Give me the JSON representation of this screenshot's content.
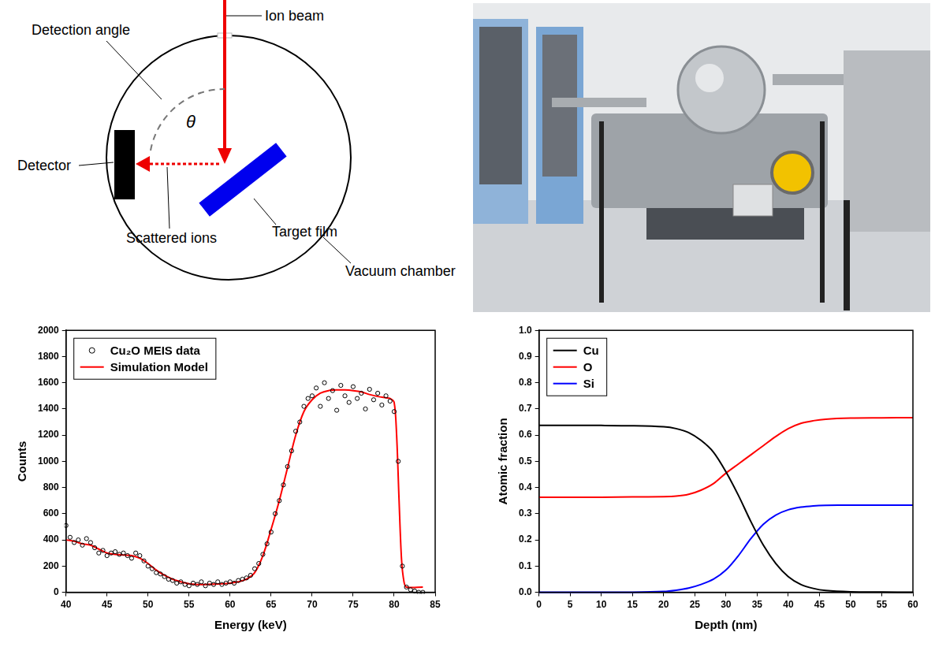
{
  "diagram": {
    "labels": {
      "ion_beam": "Ion beam",
      "detection_angle": "Detection angle",
      "angle_symbol": "θ",
      "detector": "Detector",
      "scattered_ions": "Scattered ions",
      "target_film": "Target film",
      "vacuum_chamber": "Vacuum chamber"
    }
  },
  "chart_data": [
    {
      "type": "scatter",
      "x_label": "Energy (keV)",
      "y_label": "Counts",
      "xlim": [
        40,
        85
      ],
      "xticks": [
        40,
        45,
        50,
        55,
        60,
        65,
        70,
        75,
        80,
        85
      ],
      "ylim": [
        0,
        2000
      ],
      "yticks": [
        0,
        200,
        400,
        600,
        800,
        1000,
        1200,
        1400,
        1600,
        1800,
        2000
      ],
      "grid": false,
      "legend": "top left",
      "series": [
        {
          "name": "Cu₂O MEIS data",
          "type": "scatter",
          "marker": "open_circle",
          "color": "#000000",
          "x": [
            40,
            40.5,
            41,
            41.5,
            42,
            42.5,
            43,
            43.5,
            44,
            44.5,
            45,
            45.5,
            46,
            46.5,
            47,
            47.5,
            48,
            48.5,
            49,
            49.5,
            50,
            50.5,
            51,
            51.5,
            52,
            52.5,
            53,
            53.5,
            54,
            54.5,
            55,
            55.5,
            56,
            56.5,
            57,
            57.5,
            58,
            58.5,
            59,
            59.5,
            60,
            60.5,
            61,
            61.5,
            62,
            62.5,
            63,
            63.5,
            64,
            64.5,
            65,
            65.5,
            66,
            66.5,
            67,
            67.5,
            68,
            68.5,
            69,
            69.5,
            70,
            70.5,
            71,
            71.5,
            72,
            72.5,
            73,
            73.5,
            74,
            74.5,
            75,
            75.5,
            76,
            76.5,
            77,
            77.5,
            78,
            78.5,
            79,
            79.5,
            80,
            80.5,
            81,
            81.5,
            82,
            82.5,
            83,
            83.5
          ],
          "values": [
            510,
            420,
            380,
            400,
            360,
            410,
            380,
            340,
            300,
            320,
            280,
            300,
            310,
            290,
            300,
            280,
            260,
            300,
            280,
            240,
            200,
            180,
            150,
            140,
            120,
            100,
            90,
            70,
            80,
            60,
            50,
            70,
            60,
            80,
            50,
            70,
            60,
            80,
            60,
            70,
            80,
            70,
            90,
            100,
            110,
            130,
            180,
            220,
            290,
            370,
            460,
            600,
            700,
            820,
            960,
            1080,
            1230,
            1300,
            1420,
            1480,
            1500,
            1560,
            1420,
            1600,
            1480,
            1540,
            1390,
            1580,
            1500,
            1450,
            1570,
            1480,
            1520,
            1400,
            1550,
            1470,
            1520,
            1430,
            1500,
            1460,
            1380,
            1000,
            200,
            40,
            20,
            10,
            0,
            0
          ]
        },
        {
          "name": "Simulation Model",
          "type": "line",
          "line_style": "solid",
          "color": "#ff0000",
          "x": [
            40,
            41,
            42,
            43,
            44,
            45,
            46,
            47,
            48,
            49,
            50,
            51,
            52,
            53,
            54,
            55,
            56,
            57,
            58,
            59,
            60,
            61,
            62,
            63,
            64,
            65,
            66,
            67,
            68,
            69,
            70,
            71,
            72,
            73,
            74,
            75,
            76,
            77,
            78,
            79,
            79.5,
            80,
            80.3,
            80.6,
            80.9,
            81.2,
            81.5,
            83.5
          ],
          "values": [
            400,
            390,
            370,
            360,
            330,
            300,
            290,
            285,
            280,
            260,
            220,
            170,
            130,
            100,
            80,
            65,
            60,
            60,
            62,
            65,
            70,
            80,
            100,
            150,
            280,
            480,
            700,
            950,
            1200,
            1380,
            1470,
            1520,
            1540,
            1545,
            1545,
            1540,
            1530,
            1510,
            1495,
            1485,
            1480,
            1450,
            1200,
            700,
            250,
            80,
            40,
            40
          ]
        }
      ]
    },
    {
      "type": "line",
      "x_label": "Depth (nm)",
      "y_label": "Atomic fraction",
      "xlim": [
        0,
        60
      ],
      "xticks": [
        0,
        5,
        10,
        15,
        20,
        25,
        30,
        35,
        40,
        45,
        50,
        55,
        60
      ],
      "ylim": [
        0,
        1
      ],
      "yticks": [
        {
          "value": 0,
          "label": "0.0"
        },
        0.1,
        0.2,
        0.3,
        0.4,
        0.5,
        0.6,
        0.7,
        0.8,
        0.9,
        {
          "value": 1,
          "label": "1.0"
        }
      ],
      "grid": false,
      "legend": "top left",
      "x": [
        0,
        5,
        10,
        15,
        20,
        22,
        24,
        26,
        28,
        30,
        32,
        34,
        36,
        38,
        40,
        42,
        44,
        46,
        50,
        55,
        60
      ],
      "series": [
        {
          "name": "Cu",
          "color": "#000000",
          "values": [
            0.637,
            0.637,
            0.637,
            0.636,
            0.632,
            0.625,
            0.61,
            0.58,
            0.535,
            0.46,
            0.37,
            0.27,
            0.18,
            0.11,
            0.06,
            0.03,
            0.015,
            0.007,
            0.002,
            0.001,
            0
          ]
        },
        {
          "name": "O",
          "color": "#ff0000",
          "values": [
            0.363,
            0.363,
            0.363,
            0.364,
            0.365,
            0.367,
            0.374,
            0.39,
            0.415,
            0.455,
            0.49,
            0.525,
            0.56,
            0.595,
            0.625,
            0.645,
            0.655,
            0.661,
            0.665,
            0.666,
            0.667
          ]
        },
        {
          "name": "Si",
          "color": "#0000ff",
          "values": [
            0,
            0,
            0,
            0,
            0.003,
            0.008,
            0.016,
            0.03,
            0.05,
            0.085,
            0.14,
            0.205,
            0.26,
            0.295,
            0.315,
            0.325,
            0.33,
            0.332,
            0.333,
            0.333,
            0.333
          ]
        }
      ]
    }
  ]
}
